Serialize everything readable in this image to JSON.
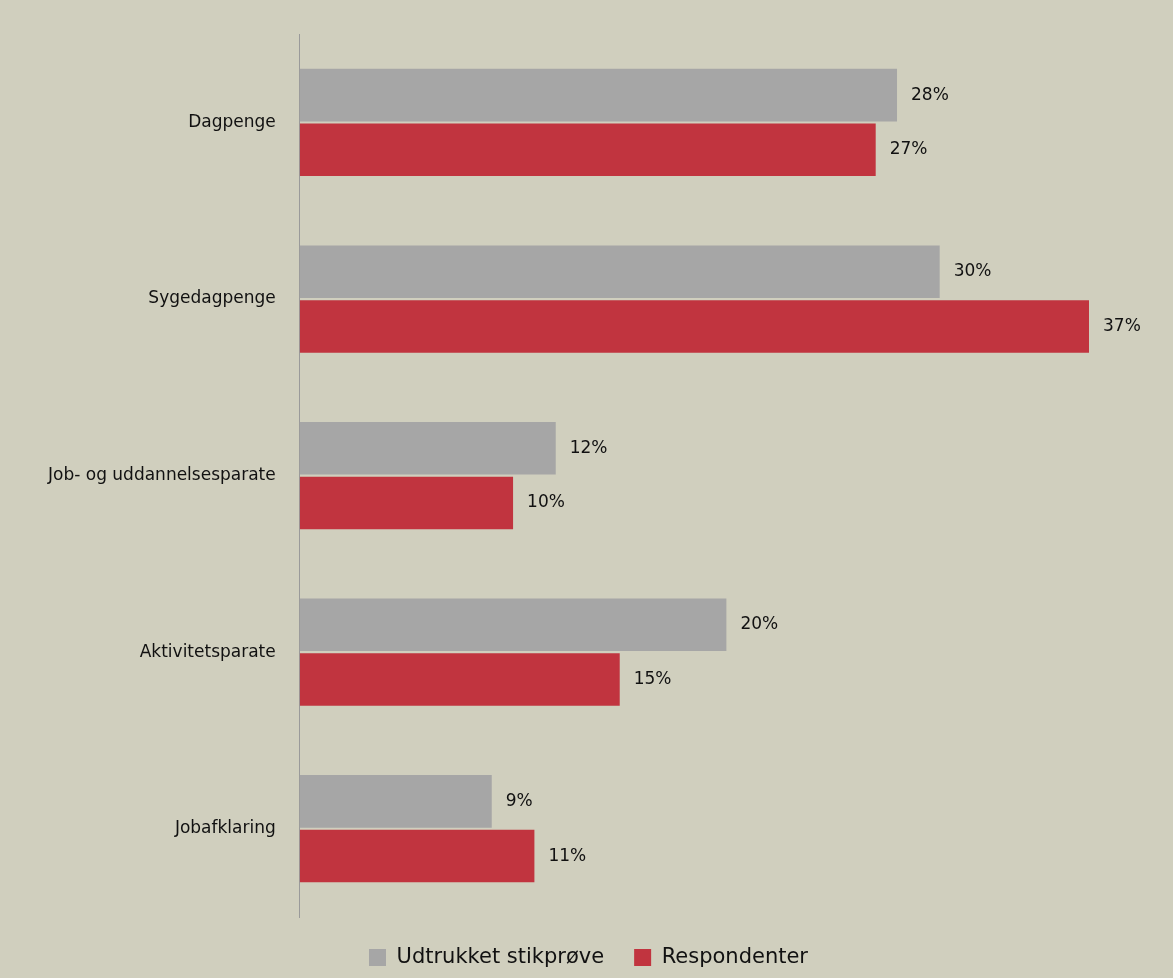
{
  "chart_data": {
    "type": "bar",
    "orientation": "horizontal",
    "categories": [
      "Dagpenge",
      "Sygedagpenge",
      "Job- og uddannelsesparate",
      "Aktivitetsparate",
      "Jobafklaring"
    ],
    "series": [
      {
        "name": "Udtrukket stikprøve",
        "color": "#a6a6a6",
        "values": [
          28,
          30,
          12,
          20,
          9
        ],
        "value_labels": [
          "28%",
          "30%",
          "12%",
          "20%",
          "9%"
        ]
      },
      {
        "name": "Respondenter",
        "color": "#c1343f",
        "values": [
          27,
          37,
          10,
          15,
          11
        ],
        "value_labels": [
          "27%",
          "37%",
          "10%",
          "15%",
          "11%"
        ]
      }
    ],
    "tick_labels": "y",
    "grid": false,
    "legend": "bottom"
  }
}
